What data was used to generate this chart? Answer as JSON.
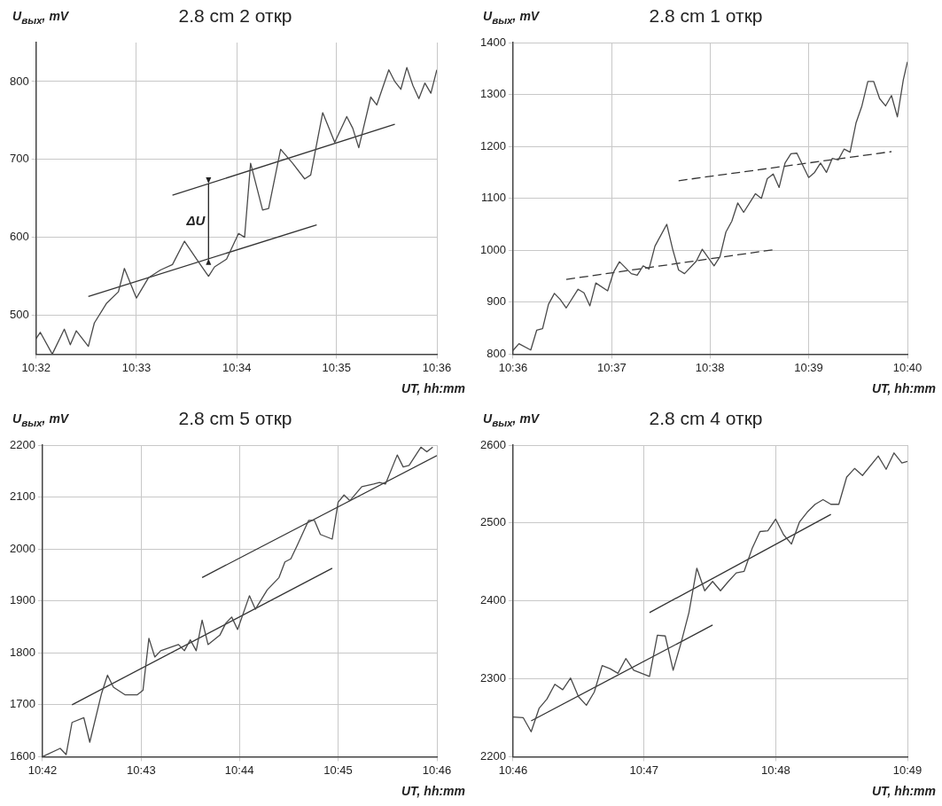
{
  "chart_data": [
    {
      "type": "line",
      "title": "2.8 cm  2  откр",
      "xlabel": "UT, hh:mm",
      "ylabel": "U$_{вых}$, mV",
      "xlim": [
        10.5333,
        10.6
      ],
      "xticks": [
        {
          "value": 10.5333,
          "label": "10:32"
        },
        {
          "value": 10.55,
          "label": "10:33"
        },
        {
          "value": 10.5667,
          "label": "10:34"
        },
        {
          "value": 10.5833,
          "label": "10:35"
        },
        {
          "value": 10.6,
          "label": "10:36"
        }
      ],
      "ylim": [
        450,
        850
      ],
      "yticks": [
        500,
        600,
        700,
        800
      ],
      "grid": true,
      "legend": false,
      "marker": "none",
      "line_style": "solid",
      "annotations": [
        {
          "text": "ΔU",
          "x": 10.562,
          "y": 669
        }
      ],
      "series": [
        {
          "color": "#4a4a4a",
          "x": [
            10.5333,
            10.534,
            10.536,
            10.538,
            10.539,
            10.54,
            10.542,
            10.543,
            10.545,
            10.547,
            10.548,
            10.55,
            10.552,
            10.554,
            10.556,
            10.558,
            10.56,
            10.562,
            10.563,
            10.565,
            10.567,
            10.568,
            10.569,
            10.571,
            10.572,
            10.574,
            10.576,
            10.578,
            10.579,
            10.581,
            10.583,
            10.585,
            10.586,
            10.587,
            10.589,
            10.59,
            10.592,
            10.593,
            10.594,
            10.595,
            10.596,
            10.597,
            10.598,
            10.599,
            10.6
          ],
          "values": [
            470,
            478,
            450,
            482,
            462,
            480,
            460,
            490,
            515,
            530,
            560,
            522,
            548,
            558,
            565,
            595,
            572,
            550,
            562,
            572,
            605,
            600,
            695,
            635,
            637,
            713,
            695,
            675,
            680,
            760,
            722,
            755,
            740,
            715,
            780,
            770,
            815,
            800,
            790,
            818,
            795,
            778,
            798,
            785,
            815
          ]
        },
        {
          "color": "#333333",
          "x": [
            10.542,
            10.58
          ],
          "values": [
            524,
            616
          ]
        },
        {
          "color": "#333333",
          "x": [
            10.556,
            10.593
          ],
          "values": [
            654,
            745
          ]
        }
      ]
    },
    {
      "type": "line",
      "title": "2.8 cm  1  откр",
      "xlabel": "UT, hh:mm",
      "ylabel": "U$_{вых}$, mV",
      "xlim": [
        10.6,
        10.6667
      ],
      "xticks": [
        {
          "value": 10.6,
          "label": "10:36"
        },
        {
          "value": 10.6167,
          "label": "10:37"
        },
        {
          "value": 10.6333,
          "label": "10:38"
        },
        {
          "value": 10.65,
          "label": "10:39"
        },
        {
          "value": 10.6667,
          "label": "10:40"
        }
      ],
      "ylim": [
        800,
        1400
      ],
      "yticks": [
        800,
        900,
        1000,
        1100,
        1200,
        1300,
        1400
      ],
      "grid": true,
      "legend": false,
      "marker": "none",
      "line_style": "solid",
      "series": [
        {
          "color": "#4a4a4a",
          "x": [
            10.6,
            10.601,
            10.603,
            10.604,
            10.605,
            10.606,
            10.607,
            10.608,
            10.609,
            10.611,
            10.612,
            10.613,
            10.614,
            10.616,
            10.617,
            10.618,
            10.62,
            10.621,
            10.622,
            10.623,
            10.624,
            10.626,
            10.627,
            10.628,
            10.629,
            10.631,
            10.632,
            10.634,
            10.635,
            10.636,
            10.637,
            10.638,
            10.639,
            10.641,
            10.642,
            10.643,
            10.644,
            10.645,
            10.646,
            10.647,
            10.648,
            10.65,
            10.651,
            10.652,
            10.653,
            10.654,
            10.655,
            10.656,
            10.657,
            10.658,
            10.659,
            10.66,
            10.661,
            10.662,
            10.663,
            10.664,
            10.665,
            10.666,
            10.6667
          ],
          "values": [
            807,
            820,
            808,
            846,
            849,
            896,
            917,
            905,
            889,
            925,
            918,
            893,
            937,
            922,
            958,
            978,
            955,
            952,
            970,
            964,
            1008,
            1050,
            1002,
            962,
            955,
            979,
            1002,
            970,
            988,
            1035,
            1056,
            1091,
            1073,
            1109,
            1100,
            1138,
            1147,
            1121,
            1168,
            1186,
            1187,
            1140,
            1150,
            1168,
            1150,
            1177,
            1174,
            1195,
            1189,
            1245,
            1278,
            1325,
            1325,
            1292,
            1278,
            1298,
            1257,
            1328,
            1363
          ]
        },
        {
          "color": "#333333",
          "line_style": "dashed",
          "x": [
            10.609,
            10.644
          ],
          "values": [
            944,
            1001
          ]
        },
        {
          "color": "#333333",
          "line_style": "dashed",
          "x": [
            10.628,
            10.664
          ],
          "values": [
            1134,
            1190
          ]
        }
      ]
    },
    {
      "type": "line",
      "title": "2.8 cm  5  откр",
      "xlabel": "UT, hh:mm",
      "ylabel": "U$_{вых}$, mV",
      "xlim": [
        10.7,
        10.7667
      ],
      "xticks": [
        {
          "value": 10.7,
          "label": "10:42"
        },
        {
          "value": 10.7167,
          "label": "10:43"
        },
        {
          "value": 10.7333,
          "label": "10:44"
        },
        {
          "value": 10.75,
          "label": "10:45"
        },
        {
          "value": 10.7667,
          "label": "10:46"
        }
      ],
      "ylim": [
        1600,
        2200
      ],
      "yticks": [
        1600,
        1700,
        1800,
        1900,
        2000,
        2100,
        2200
      ],
      "grid": true,
      "legend": false,
      "marker": "none",
      "line_style": "solid",
      "series": [
        {
          "color": "#4a4a4a",
          "x": [
            10.7,
            10.703,
            10.704,
            10.705,
            10.707,
            10.708,
            10.71,
            10.711,
            10.712,
            10.714,
            10.716,
            10.717,
            10.718,
            10.719,
            10.72,
            10.723,
            10.724,
            10.725,
            10.726,
            10.727,
            10.728,
            10.73,
            10.731,
            10.732,
            10.733,
            10.735,
            10.736,
            10.738,
            10.74,
            10.741,
            10.742,
            10.743,
            10.745,
            10.746,
            10.747,
            10.749,
            10.75,
            10.751,
            10.752,
            10.754,
            10.756,
            10.757,
            10.758,
            10.76,
            10.761,
            10.762,
            10.764,
            10.765,
            10.766
          ],
          "values": [
            1600,
            1616,
            1604,
            1666,
            1675,
            1628,
            1722,
            1757,
            1734,
            1719,
            1719,
            1728,
            1828,
            1792,
            1804,
            1816,
            1804,
            1825,
            1804,
            1863,
            1816,
            1834,
            1857,
            1869,
            1845,
            1910,
            1884,
            1921,
            1945,
            1975,
            1981,
            2005,
            2055,
            2055,
            2028,
            2019,
            2090,
            2104,
            2093,
            2120,
            2125,
            2128,
            2125,
            2181,
            2158,
            2161,
            2196,
            2187,
            2196
          ]
        },
        {
          "color": "#333333",
          "x": [
            10.705,
            10.749
          ],
          "values": [
            1700,
            1963
          ]
        },
        {
          "color": "#333333",
          "x": [
            10.727,
            10.7667
          ],
          "values": [
            1945,
            2180
          ]
        }
      ]
    },
    {
      "type": "line",
      "title": "2.8 cm  4  откр",
      "xlabel": "UT, hh:mm",
      "ylabel": "U$_{вых}$, mV",
      "xlim": [
        10.7667,
        10.8167
      ],
      "xticks": [
        {
          "value": 10.7667,
          "label": "10:46"
        },
        {
          "value": 10.7833,
          "label": "10:47"
        },
        {
          "value": 10.8,
          "label": "10:48"
        },
        {
          "value": 10.8167,
          "label": "10:49"
        }
      ],
      "ylim": [
        2200,
        2600
      ],
      "yticks": [
        2200,
        2300,
        2400,
        2500,
        2600
      ],
      "grid": true,
      "legend": false,
      "marker": "none",
      "line_style": "solid",
      "series": [
        {
          "color": "#4a4a4a",
          "x": [
            10.7667,
            10.768,
            10.769,
            10.77,
            10.771,
            10.772,
            10.773,
            10.774,
            10.775,
            10.776,
            10.777,
            10.778,
            10.779,
            10.78,
            10.781,
            10.782,
            10.784,
            10.785,
            10.786,
            10.787,
            10.788,
            10.789,
            10.79,
            10.791,
            10.792,
            10.793,
            10.794,
            10.795,
            10.796,
            10.797,
            10.798,
            10.799,
            10.8,
            10.801,
            10.802,
            10.803,
            10.804,
            10.805,
            10.806,
            10.807,
            10.808,
            10.809,
            10.81,
            10.811,
            10.813,
            10.814,
            10.815,
            10.816,
            10.8167
          ],
          "values": [
            2251,
            2250,
            2232,
            2262,
            2274,
            2293,
            2286,
            2301,
            2277,
            2266,
            2283,
            2317,
            2313,
            2307,
            2326,
            2311,
            2303,
            2356,
            2355,
            2311,
            2346,
            2385,
            2442,
            2413,
            2425,
            2413,
            2425,
            2436,
            2438,
            2467,
            2489,
            2490,
            2505,
            2485,
            2473,
            2501,
            2514,
            2524,
            2530,
            2524,
            2524,
            2559,
            2570,
            2561,
            2586,
            2569,
            2590,
            2577,
            2579
          ]
        },
        {
          "color": "#333333",
          "x": [
            10.769,
            10.792
          ],
          "values": [
            2246,
            2369
          ]
        },
        {
          "color": "#333333",
          "x": [
            10.784,
            10.807
          ],
          "values": [
            2385,
            2511
          ]
        }
      ]
    }
  ]
}
